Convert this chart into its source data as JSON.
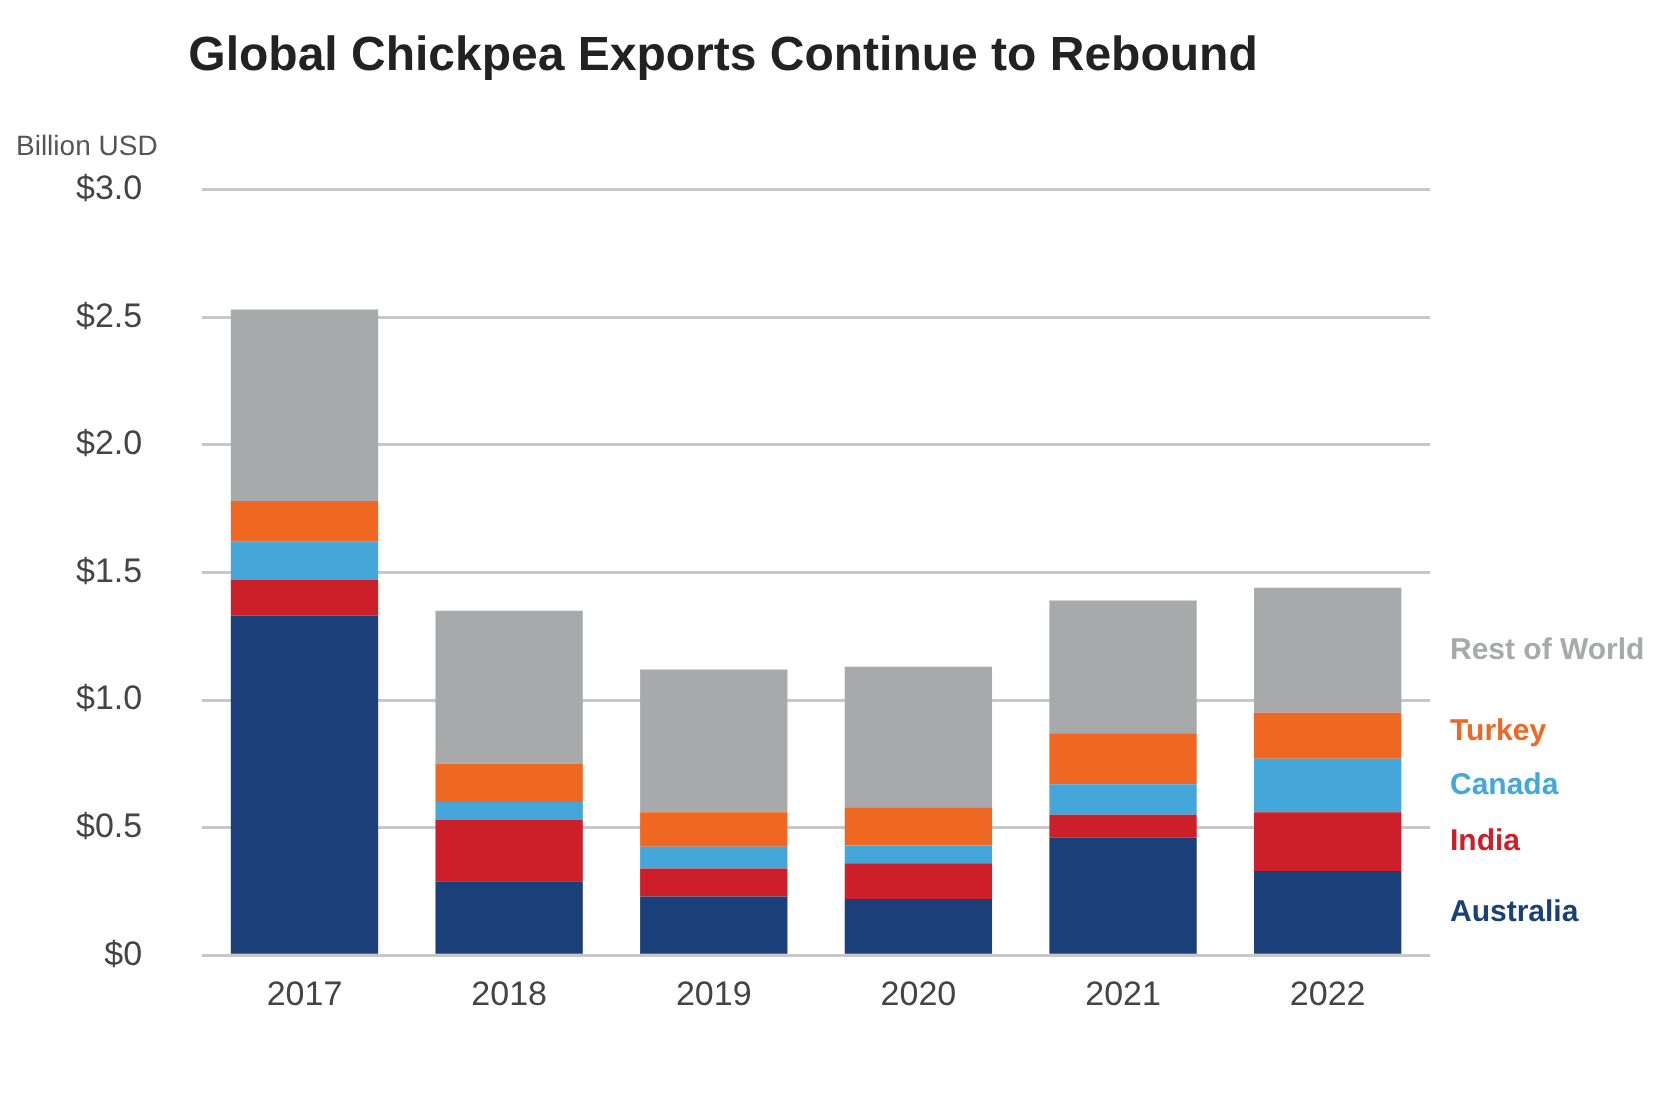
{
  "chart_data": {
    "type": "bar",
    "title": "Global Chickpea Exports Continue to Rebound",
    "ylabel": "Billion USD",
    "categories": [
      "2017",
      "2018",
      "2019",
      "2020",
      "2021",
      "2022"
    ],
    "stacked": true,
    "series": [
      {
        "name": "Australia",
        "color": "#1b3f78",
        "values": [
          1.33,
          0.29,
          0.23,
          0.22,
          0.46,
          0.33
        ]
      },
      {
        "name": "India",
        "color": "#cc1f2a",
        "values": [
          0.14,
          0.24,
          0.11,
          0.14,
          0.09,
          0.23
        ]
      },
      {
        "name": "Canada",
        "color": "#45a6da",
        "values": [
          0.15,
          0.07,
          0.085,
          0.07,
          0.12,
          0.21
        ]
      },
      {
        "name": "Turkey",
        "color": "#ee6723",
        "values": [
          0.16,
          0.15,
          0.135,
          0.15,
          0.2,
          0.18
        ]
      },
      {
        "name": "Rest of World",
        "color": "#a7a9ab",
        "values": [
          0.75,
          0.6,
          0.56,
          0.55,
          0.52,
          0.49
        ]
      }
    ],
    "ylim": [
      0,
      3
    ],
    "yticks": [
      {
        "value": 0,
        "label": "$0"
      },
      {
        "value": 0.5,
        "label": "$0.5"
      },
      {
        "value": 1,
        "label": "$1.0"
      },
      {
        "value": 1.5,
        "label": "$1.5"
      },
      {
        "value": 2,
        "label": "$2.0"
      },
      {
        "value": 2.5,
        "label": "$2.5"
      },
      {
        "value": 3,
        "label": "$3.0"
      }
    ],
    "grid": "y",
    "legend": "right"
  }
}
